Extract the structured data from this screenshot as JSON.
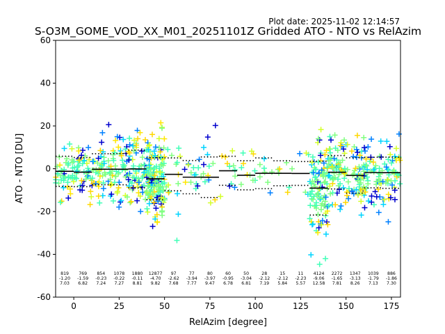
{
  "plot_date": "Plot date: 2025-11-02 12:14:57",
  "chart_data": {
    "type": "scatter",
    "title": "S-O3M_GOME_VOD_XX_M01_20251101Z Gridded ATO - NTO vs RelAzim",
    "xlabel": "RelAzim [degree]",
    "ylabel": "ATO - NTO [DU]",
    "xlim": [
      -10,
      180
    ],
    "ylim": [
      -60,
      60
    ],
    "xticks": [
      0,
      25,
      50,
      75,
      100,
      125,
      150,
      175
    ],
    "yticks": [
      -60,
      -40,
      -20,
      0,
      20,
      40,
      60
    ],
    "grid": false,
    "bin_width": 10,
    "bins": [
      {
        "x0": -10,
        "x1": 0,
        "count": "819",
        "mean": "-1.20",
        "std": "7.03"
      },
      {
        "x0": 0,
        "x1": 10,
        "count": "769",
        "mean": "-1.59",
        "std": "6.82"
      },
      {
        "x0": 10,
        "x1": 20,
        "count": "854",
        "mean": "-0.23",
        "std": "7.24"
      },
      {
        "x0": 20,
        "x1": 30,
        "count": "1078",
        "mean": "-0.22",
        "std": "7.27"
      },
      {
        "x0": 30,
        "x1": 40,
        "count": "1880",
        "mean": "-0.11",
        "std": "8.81"
      },
      {
        "x0": 40,
        "x1": 50,
        "count": "12877",
        "mean": "-4.70",
        "std": "9.82"
      },
      {
        "x0": 50,
        "x1": 60,
        "count": "97",
        "mean": "-2.62",
        "std": "7.68"
      },
      {
        "x0": 60,
        "x1": 70,
        "count": "77",
        "mean": "-3.94",
        "std": "7.77"
      },
      {
        "x0": 70,
        "x1": 80,
        "count": "80",
        "mean": "-3.97",
        "std": "9.47"
      },
      {
        "x0": 80,
        "x1": 90,
        "count": "60",
        "mean": "-0.95",
        "std": "6.78"
      },
      {
        "x0": 90,
        "x1": 100,
        "count": "50",
        "mean": "-3.04",
        "std": "6.81"
      },
      {
        "x0": 100,
        "x1": 110,
        "count": "28",
        "mean": "-2.12",
        "std": "7.19"
      },
      {
        "x0": 110,
        "x1": 120,
        "count": "15",
        "mean": "-2.12",
        "std": "5.84"
      },
      {
        "x0": 120,
        "x1": 130,
        "count": "11",
        "mean": "-2.23",
        "std": "5.57"
      },
      {
        "x0": 130,
        "x1": 140,
        "count": "4124",
        "mean": "-9.06",
        "std": "12.58"
      },
      {
        "x0": 140,
        "x1": 150,
        "count": "2272",
        "mean": "-1.65",
        "std": "7.81"
      },
      {
        "x0": 150,
        "x1": 160,
        "count": "1347",
        "mean": "-3.13",
        "std": "8.26"
      },
      {
        "x0": 160,
        "x1": 170,
        "count": "1039",
        "mean": "-1.79",
        "std": "7.13"
      },
      {
        "x0": 170,
        "x1": 180,
        "count": "886",
        "mean": "-1.86",
        "std": "7.30"
      }
    ],
    "marker_colors": [
      "#0000cd",
      "#0080ff",
      "#00d4ff",
      "#40ffb7",
      "#80ff80",
      "#d4ff2a",
      "#ffe600",
      "#ffd700"
    ]
  }
}
